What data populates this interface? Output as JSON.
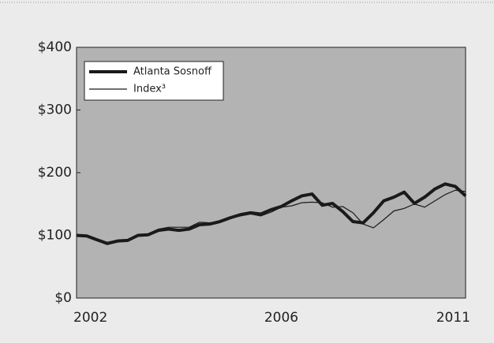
{
  "chart_data": {
    "type": "line",
    "categories": [
      "2002",
      null,
      null,
      null,
      null,
      null,
      null,
      null,
      null,
      null,
      null,
      null,
      null,
      null,
      null,
      null,
      null,
      null,
      null,
      null,
      "2006",
      null,
      null,
      null,
      null,
      null,
      null,
      null,
      null,
      null,
      null,
      null,
      null,
      null,
      null,
      null,
      null,
      null,
      "2011"
    ],
    "series": [
      {
        "name": "Atlanta Sosnoff",
        "color": "#1a1a1a",
        "line_width": 4,
        "values": [
          100,
          99,
          93,
          87,
          91,
          92,
          100,
          101,
          108,
          110,
          108,
          110,
          117,
          118,
          122,
          128,
          133,
          136,
          134,
          141,
          146,
          155,
          163,
          166,
          148,
          151,
          138,
          122,
          120,
          136,
          155,
          161,
          169,
          151,
          161,
          174,
          182,
          178,
          163
        ]
      },
      {
        "name": "Index³",
        "color": "#1a1a1a",
        "line_width": 1.2,
        "values": [
          100,
          99,
          94,
          89,
          92,
          93,
          100,
          102,
          110,
          113,
          113,
          113,
          121,
          120,
          122,
          127,
          131,
          134,
          131,
          137,
          145,
          147,
          152,
          153,
          152,
          145,
          146,
          136,
          118,
          112,
          125,
          139,
          143,
          150,
          145,
          155,
          165,
          172,
          170
        ]
      }
    ],
    "ylim": [
      0,
      400
    ],
    "yticks": [
      {
        "value": 0,
        "label": "$0"
      },
      {
        "value": 100,
        "label": "$100"
      },
      {
        "value": 200,
        "label": "$200"
      },
      {
        "value": 300,
        "label": "$300"
      },
      {
        "value": 400,
        "label": "$400"
      }
    ],
    "plot_background": "#b3b3b3",
    "legend": "upper left"
  }
}
